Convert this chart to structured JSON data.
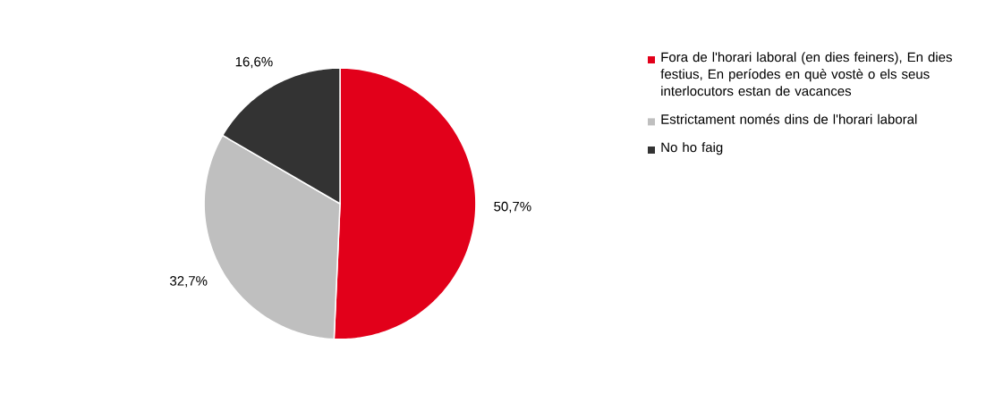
{
  "chart_data": {
    "type": "pie",
    "categories": [
      "Fora de l'horari laboral (en dies feiners), En dies festius, En períodes en què vostè o els seus interlocutors estan de vacances",
      "Estrictament només dins de l'horari laboral",
      "No ho faig"
    ],
    "values": [
      50.7,
      32.7,
      16.6
    ],
    "value_labels": [
      "50,7%",
      "32,7%",
      "16,6%"
    ],
    "colors": [
      "#e2001a",
      "#bfbfbf",
      "#333333"
    ],
    "legend": "right"
  }
}
